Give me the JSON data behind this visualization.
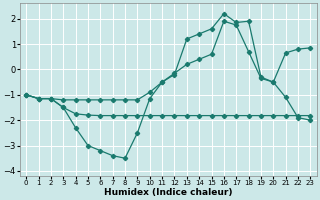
{
  "xlabel": "Humidex (Indice chaleur)",
  "background_color": "#cce8e8",
  "grid_color": "#ffffff",
  "line_color": "#1a7a6e",
  "xlim": [
    -0.5,
    23.5
  ],
  "ylim": [
    -4.2,
    2.6
  ],
  "yticks": [
    -4,
    -3,
    -2,
    -1,
    0,
    1,
    2
  ],
  "xticks": [
    0,
    1,
    2,
    3,
    4,
    5,
    6,
    7,
    8,
    9,
    10,
    11,
    12,
    13,
    14,
    15,
    16,
    17,
    18,
    19,
    20,
    21,
    22,
    23
  ],
  "line1_x": [
    0,
    1,
    2,
    3,
    4,
    5,
    6,
    7,
    8,
    9,
    10,
    11,
    12,
    13,
    14,
    15,
    16,
    17,
    18,
    19,
    20,
    21,
    22,
    23
  ],
  "line1_y": [
    -1.0,
    -1.15,
    -1.15,
    -1.5,
    -2.3,
    -3.0,
    -3.2,
    -3.4,
    -3.5,
    -2.5,
    -1.15,
    -0.5,
    -0.2,
    1.2,
    1.4,
    1.6,
    2.2,
    1.85,
    1.9,
    -0.3,
    -0.5,
    -1.1,
    -1.9,
    -2.0
  ],
  "line2_x": [
    0,
    1,
    2,
    3,
    4,
    5,
    6,
    7,
    8,
    9,
    10,
    11,
    12,
    13,
    14,
    15,
    16,
    17,
    18,
    19,
    20,
    21,
    22,
    23
  ],
  "line2_y": [
    -1.0,
    -1.15,
    -1.15,
    -1.5,
    -1.75,
    -1.8,
    -1.82,
    -1.82,
    -1.82,
    -1.82,
    -1.82,
    -1.82,
    -1.82,
    -1.82,
    -1.82,
    -1.82,
    -1.82,
    -1.82,
    -1.82,
    -1.82,
    -1.82,
    -1.82,
    -1.82,
    -1.82
  ],
  "line3_x": [
    0,
    1,
    2,
    3,
    4,
    5,
    6,
    7,
    8,
    9,
    10,
    11,
    12,
    13,
    14,
    15,
    16,
    17,
    18,
    19,
    20,
    21,
    22,
    23
  ],
  "line3_y": [
    -1.0,
    -1.15,
    -1.15,
    -1.2,
    -1.2,
    -1.2,
    -1.2,
    -1.2,
    -1.2,
    -1.2,
    -0.9,
    -0.5,
    -0.15,
    0.2,
    0.4,
    0.6,
    1.9,
    1.75,
    0.7,
    -0.35,
    -0.5,
    0.65,
    0.8,
    0.85
  ]
}
